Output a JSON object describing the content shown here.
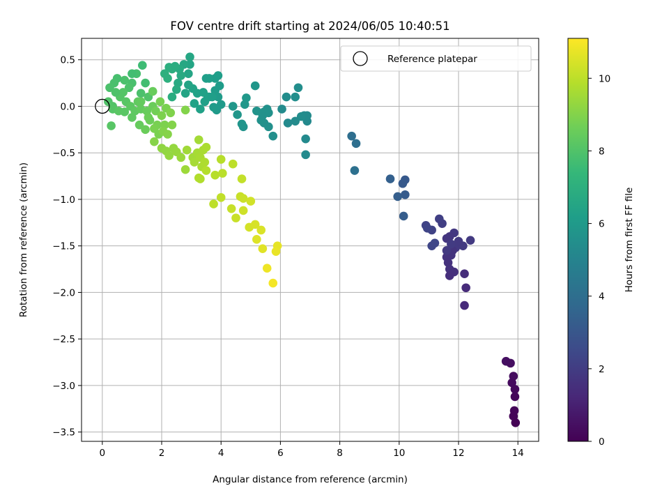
{
  "chart_data": {
    "type": "scatter",
    "title": "FOV centre drift starting at 2024/06/05 10:40:51",
    "xlabel": "Angular distance from reference (arcmin)",
    "ylabel": "Rotation from reference (arcmin)",
    "xlim": [
      -0.7,
      14.7
    ],
    "ylim": [
      -3.6,
      0.73
    ],
    "xticks": [
      0,
      2,
      4,
      6,
      8,
      10,
      12,
      14
    ],
    "xtick_labels": [
      "0",
      "2",
      "4",
      "6",
      "8",
      "10",
      "12",
      "14"
    ],
    "yticks": [
      0.5,
      0.0,
      -0.5,
      -1.0,
      -1.5,
      -2.0,
      -2.5,
      -3.0,
      -3.5
    ],
    "ytick_labels": [
      "0.5",
      "0.0",
      "−0.5",
      "−1.0",
      "−1.5",
      "−2.0",
      "−2.5",
      "−3.0",
      "−3.5"
    ],
    "grid": true,
    "legend": {
      "position": "top-right",
      "label": "Reference platepar"
    },
    "reference_point": {
      "x": 0,
      "y": 0
    },
    "colorbar": {
      "label": "Hours from first FF file",
      "range": [
        0,
        11.1
      ],
      "ticks": [
        0,
        2,
        4,
        6,
        8,
        10
      ],
      "tick_labels": [
        "0",
        "2",
        "4",
        "6",
        "8",
        "10"
      ],
      "colormap": "viridis",
      "colors": [
        "#440154",
        "#482878",
        "#3e4989",
        "#31688e",
        "#26828e",
        "#1f9e89",
        "#35b779",
        "#6ece58",
        "#b5de2b",
        "#fde725"
      ]
    },
    "points": [
      {
        "x": 13.6,
        "y": -2.74,
        "c": 0.45
      },
      {
        "x": 13.75,
        "y": -2.76,
        "c": 0.4
      },
      {
        "x": 13.85,
        "y": -2.9,
        "c": 0.35
      },
      {
        "x": 13.8,
        "y": -2.97,
        "c": 0.3
      },
      {
        "x": 13.9,
        "y": -3.04,
        "c": 0.25
      },
      {
        "x": 13.9,
        "y": -3.12,
        "c": 0.2
      },
      {
        "x": 13.88,
        "y": -3.27,
        "c": 0.15
      },
      {
        "x": 13.85,
        "y": -3.33,
        "c": 0.1
      },
      {
        "x": 13.92,
        "y": -3.4,
        "c": 0.05
      },
      {
        "x": 12.4,
        "y": -1.44,
        "c": 1.9
      },
      {
        "x": 12.15,
        "y": -1.5,
        "c": 1.9
      },
      {
        "x": 11.9,
        "y": -1.52,
        "c": 1.85
      },
      {
        "x": 12.0,
        "y": -1.45,
        "c": 1.85
      },
      {
        "x": 11.85,
        "y": -1.36,
        "c": 1.8
      },
      {
        "x": 11.7,
        "y": -1.4,
        "c": 1.75
      },
      {
        "x": 11.6,
        "y": -1.42,
        "c": 1.75
      },
      {
        "x": 11.8,
        "y": -1.55,
        "c": 1.7
      },
      {
        "x": 11.75,
        "y": -1.6,
        "c": 1.7
      },
      {
        "x": 11.6,
        "y": -1.62,
        "c": 1.65
      },
      {
        "x": 11.65,
        "y": -1.68,
        "c": 1.6
      },
      {
        "x": 11.7,
        "y": -1.75,
        "c": 1.6
      },
      {
        "x": 11.85,
        "y": -1.78,
        "c": 1.55
      },
      {
        "x": 11.7,
        "y": -1.82,
        "c": 1.5
      },
      {
        "x": 12.2,
        "y": -1.8,
        "c": 1.45
      },
      {
        "x": 12.25,
        "y": -1.95,
        "c": 1.4
      },
      {
        "x": 12.2,
        "y": -2.14,
        "c": 1.35
      },
      {
        "x": 11.75,
        "y": -1.48,
        "c": 1.95
      },
      {
        "x": 11.6,
        "y": -1.55,
        "c": 1.9
      },
      {
        "x": 11.45,
        "y": -1.26,
        "c": 2.05
      },
      {
        "x": 11.35,
        "y": -1.21,
        "c": 2.1
      },
      {
        "x": 11.1,
        "y": -1.33,
        "c": 2.2
      },
      {
        "x": 10.9,
        "y": -1.28,
        "c": 2.25
      },
      {
        "x": 10.95,
        "y": -1.31,
        "c": 2.3
      },
      {
        "x": 11.1,
        "y": -1.5,
        "c": 2.35
      },
      {
        "x": 11.2,
        "y": -1.47,
        "c": 2.4
      },
      {
        "x": 10.2,
        "y": -0.79,
        "c": 3.1
      },
      {
        "x": 10.12,
        "y": -0.83,
        "c": 3.15
      },
      {
        "x": 10.2,
        "y": -0.95,
        "c": 3.2
      },
      {
        "x": 9.95,
        "y": -0.97,
        "c": 3.3
      },
      {
        "x": 10.15,
        "y": -1.18,
        "c": 3.25
      },
      {
        "x": 9.7,
        "y": -0.78,
        "c": 3.4
      },
      {
        "x": 8.4,
        "y": -0.32,
        "c": 4.0
      },
      {
        "x": 8.55,
        "y": -0.4,
        "c": 4.05
      },
      {
        "x": 8.5,
        "y": -0.69,
        "c": 4.1
      },
      {
        "x": 6.85,
        "y": -0.52,
        "c": 5.3
      },
      {
        "x": 6.85,
        "y": -0.35,
        "c": 5.3
      },
      {
        "x": 6.9,
        "y": -0.16,
        "c": 5.25
      },
      {
        "x": 6.8,
        "y": -0.1,
        "c": 5.3
      },
      {
        "x": 6.9,
        "y": -0.1,
        "c": 5.35
      },
      {
        "x": 6.7,
        "y": -0.11,
        "c": 5.4
      },
      {
        "x": 6.5,
        "y": -0.16,
        "c": 5.35
      },
      {
        "x": 6.25,
        "y": -0.18,
        "c": 5.3
      },
      {
        "x": 6.2,
        "y": 0.1,
        "c": 5.4
      },
      {
        "x": 6.6,
        "y": 0.2,
        "c": 5.45
      },
      {
        "x": 6.5,
        "y": 0.1,
        "c": 5.45
      },
      {
        "x": 6.05,
        "y": -0.03,
        "c": 5.35
      },
      {
        "x": 5.75,
        "y": -0.32,
        "c": 5.5
      },
      {
        "x": 5.6,
        "y": -0.22,
        "c": 5.55
      },
      {
        "x": 5.45,
        "y": -0.18,
        "c": 5.55
      },
      {
        "x": 5.35,
        "y": -0.15,
        "c": 5.6
      },
      {
        "x": 5.6,
        "y": -0.07,
        "c": 5.6
      },
      {
        "x": 5.55,
        "y": -0.03,
        "c": 5.6
      },
      {
        "x": 5.45,
        "y": -0.06,
        "c": 5.65
      },
      {
        "x": 5.4,
        "y": -0.1,
        "c": 5.6
      },
      {
        "x": 5.2,
        "y": -0.05,
        "c": 5.7
      },
      {
        "x": 5.15,
        "y": 0.22,
        "c": 5.8
      },
      {
        "x": 4.85,
        "y": 0.09,
        "c": 5.9
      },
      {
        "x": 4.8,
        "y": 0.02,
        "c": 5.85
      },
      {
        "x": 4.75,
        "y": -0.22,
        "c": 5.7
      },
      {
        "x": 4.7,
        "y": -0.19,
        "c": 5.75
      },
      {
        "x": 4.55,
        "y": -0.09,
        "c": 5.8
      },
      {
        "x": 4.4,
        "y": 0.0,
        "c": 5.85
      },
      {
        "x": 4.0,
        "y": 0.02,
        "c": 6.0
      },
      {
        "x": 3.85,
        "y": -0.04,
        "c": 6.0
      },
      {
        "x": 3.75,
        "y": -0.01,
        "c": 6.05
      },
      {
        "x": 3.9,
        "y": 0.1,
        "c": 6.05
      },
      {
        "x": 3.8,
        "y": 0.17,
        "c": 6.1
      },
      {
        "x": 3.95,
        "y": 0.22,
        "c": 6.1
      },
      {
        "x": 3.9,
        "y": 0.33,
        "c": 6.15
      },
      {
        "x": 3.8,
        "y": 0.3,
        "c": 6.15
      },
      {
        "x": 3.6,
        "y": 0.3,
        "c": 6.2
      },
      {
        "x": 3.5,
        "y": 0.3,
        "c": 6.2
      },
      {
        "x": 3.55,
        "y": 0.1,
        "c": 6.25
      },
      {
        "x": 3.45,
        "y": 0.05,
        "c": 6.25
      },
      {
        "x": 3.3,
        "y": -0.03,
        "c": 6.3
      },
      {
        "x": 3.1,
        "y": 0.03,
        "c": 6.35
      },
      {
        "x": 3.2,
        "y": 0.14,
        "c": 6.35
      },
      {
        "x": 3.05,
        "y": 0.19,
        "c": 6.4
      },
      {
        "x": 2.9,
        "y": 0.23,
        "c": 6.45
      },
      {
        "x": 2.8,
        "y": 0.14,
        "c": 6.45
      },
      {
        "x": 2.9,
        "y": 0.35,
        "c": 6.5
      },
      {
        "x": 2.95,
        "y": 0.45,
        "c": 6.5
      },
      {
        "x": 2.95,
        "y": 0.53,
        "c": 6.55
      },
      {
        "x": 3.4,
        "y": 0.15,
        "c": 6.3
      },
      {
        "x": 3.6,
        "y": 0.1,
        "c": 6.3
      },
      {
        "x": 3.7,
        "y": 0.1,
        "c": 6.2
      },
      {
        "x": 2.75,
        "y": 0.45,
        "c": 6.6
      },
      {
        "x": 2.65,
        "y": 0.33,
        "c": 6.7
      },
      {
        "x": 2.55,
        "y": 0.25,
        "c": 6.7
      },
      {
        "x": 2.5,
        "y": 0.18,
        "c": 6.8
      },
      {
        "x": 2.6,
        "y": 0.4,
        "c": 6.75
      },
      {
        "x": 2.35,
        "y": 0.4,
        "c": 6.9
      },
      {
        "x": 2.25,
        "y": 0.42,
        "c": 6.95
      },
      {
        "x": 2.1,
        "y": 0.35,
        "c": 7.0
      },
      {
        "x": 2.2,
        "y": 0.3,
        "c": 7.0
      },
      {
        "x": 2.35,
        "y": 0.1,
        "c": 6.85
      },
      {
        "x": 2.45,
        "y": 0.43,
        "c": 6.85
      },
      {
        "x": 2.8,
        "y": -0.04,
        "c": 9.0
      },
      {
        "x": 1.35,
        "y": 0.44,
        "c": 7.6
      },
      {
        "x": 1.45,
        "y": 0.25,
        "c": 7.7
      },
      {
        "x": 1.15,
        "y": 0.35,
        "c": 7.8
      },
      {
        "x": 1.0,
        "y": 0.25,
        "c": 7.85
      },
      {
        "x": 1.3,
        "y": 0.14,
        "c": 7.9
      },
      {
        "x": 1.55,
        "y": 0.1,
        "c": 8.0
      },
      {
        "x": 0.9,
        "y": 0.2,
        "c": 7.95
      },
      {
        "x": 0.75,
        "y": 0.28,
        "c": 7.9
      },
      {
        "x": 0.5,
        "y": 0.3,
        "c": 7.8
      },
      {
        "x": 0.4,
        "y": 0.25,
        "c": 7.85
      },
      {
        "x": 0.25,
        "y": 0.2,
        "c": 7.9
      },
      {
        "x": 0.2,
        "y": 0.05,
        "c": 8.0
      },
      {
        "x": 0.35,
        "y": 0.0,
        "c": 8.05
      },
      {
        "x": 0.35,
        "y": -0.03,
        "c": 8.1
      },
      {
        "x": 0.3,
        "y": -0.21,
        "c": 8.15
      },
      {
        "x": 0.6,
        "y": 0.1,
        "c": 8.1
      },
      {
        "x": 0.75,
        "y": -0.06,
        "c": 8.2
      },
      {
        "x": 0.8,
        "y": 0.05,
        "c": 8.15
      },
      {
        "x": 0.7,
        "y": 0.15,
        "c": 8.1
      },
      {
        "x": 0.95,
        "y": 0.0,
        "c": 8.25
      },
      {
        "x": 1.0,
        "y": -0.12,
        "c": 8.3
      },
      {
        "x": 1.1,
        "y": -0.05,
        "c": 8.3
      },
      {
        "x": 1.2,
        "y": 0.05,
        "c": 8.35
      },
      {
        "x": 1.3,
        "y": -0.03,
        "c": 8.4
      },
      {
        "x": 1.25,
        "y": -0.2,
        "c": 8.45
      },
      {
        "x": 1.5,
        "y": -0.05,
        "c": 8.5
      },
      {
        "x": 1.45,
        "y": -0.25,
        "c": 8.55
      },
      {
        "x": 1.6,
        "y": -0.15,
        "c": 8.6
      },
      {
        "x": 1.7,
        "y": 0.0,
        "c": 8.55
      },
      {
        "x": 1.7,
        "y": 0.16,
        "c": 8.5
      },
      {
        "x": 1.8,
        "y": -0.05,
        "c": 8.7
      },
      {
        "x": 1.85,
        "y": -0.2,
        "c": 8.8
      },
      {
        "x": 1.9,
        "y": -0.3,
        "c": 8.85
      },
      {
        "x": 1.75,
        "y": -0.24,
        "c": 8.85
      },
      {
        "x": 2.0,
        "y": -0.1,
        "c": 8.9
      },
      {
        "x": 2.1,
        "y": -0.2,
        "c": 8.9
      },
      {
        "x": 2.15,
        "y": -0.02,
        "c": 8.85
      },
      {
        "x": 2.05,
        "y": -0.27,
        "c": 9.0
      },
      {
        "x": 2.2,
        "y": -0.3,
        "c": 9.05
      },
      {
        "x": 2.35,
        "y": -0.2,
        "c": 9.0
      },
      {
        "x": 2.3,
        "y": -0.07,
        "c": 8.95
      },
      {
        "x": 1.95,
        "y": 0.05,
        "c": 8.8
      },
      {
        "x": 1.0,
        "y": 0.35,
        "c": 7.7
      },
      {
        "x": 0.45,
        "y": 0.15,
        "c": 7.95
      },
      {
        "x": 2.0,
        "y": -0.45,
        "c": 9.2
      },
      {
        "x": 2.15,
        "y": -0.48,
        "c": 9.25
      },
      {
        "x": 2.25,
        "y": -0.53,
        "c": 9.3
      },
      {
        "x": 2.4,
        "y": -0.45,
        "c": 9.3
      },
      {
        "x": 2.5,
        "y": -0.49,
        "c": 9.35
      },
      {
        "x": 2.65,
        "y": -0.55,
        "c": 9.4
      },
      {
        "x": 2.8,
        "y": -0.68,
        "c": 9.45
      },
      {
        "x": 2.85,
        "y": -0.47,
        "c": 9.5
      },
      {
        "x": 3.05,
        "y": -0.55,
        "c": 9.55
      },
      {
        "x": 3.1,
        "y": -0.6,
        "c": 9.6
      },
      {
        "x": 3.2,
        "y": -0.5,
        "c": 9.6
      },
      {
        "x": 3.25,
        "y": -0.36,
        "c": 9.55
      },
      {
        "x": 3.3,
        "y": -0.55,
        "c": 9.65
      },
      {
        "x": 3.4,
        "y": -0.47,
        "c": 9.65
      },
      {
        "x": 3.5,
        "y": -0.44,
        "c": 9.7
      },
      {
        "x": 3.35,
        "y": -0.65,
        "c": 9.7
      },
      {
        "x": 3.45,
        "y": -0.6,
        "c": 9.75
      },
      {
        "x": 3.25,
        "y": -0.77,
        "c": 9.8
      },
      {
        "x": 3.3,
        "y": -0.78,
        "c": 9.8
      },
      {
        "x": 3.5,
        "y": -0.69,
        "c": 9.85
      },
      {
        "x": 3.8,
        "y": -0.74,
        "c": 9.9
      },
      {
        "x": 4.0,
        "y": -0.57,
        "c": 9.9
      },
      {
        "x": 4.05,
        "y": -0.72,
        "c": 9.95
      },
      {
        "x": 4.4,
        "y": -0.62,
        "c": 10.0
      },
      {
        "x": 4.7,
        "y": -0.78,
        "c": 10.1
      },
      {
        "x": 4.0,
        "y": -0.98,
        "c": 10.05
      },
      {
        "x": 3.75,
        "y": -1.05,
        "c": 10.0
      },
      {
        "x": 4.35,
        "y": -1.1,
        "c": 10.15
      },
      {
        "x": 4.5,
        "y": -1.2,
        "c": 10.2
      },
      {
        "x": 4.65,
        "y": -0.97,
        "c": 10.2
      },
      {
        "x": 4.75,
        "y": -0.99,
        "c": 10.25
      },
      {
        "x": 4.75,
        "y": -1.12,
        "c": 10.3
      },
      {
        "x": 5.0,
        "y": -1.02,
        "c": 10.35
      },
      {
        "x": 4.95,
        "y": -1.3,
        "c": 10.4
      },
      {
        "x": 5.15,
        "y": -1.27,
        "c": 10.45
      },
      {
        "x": 5.35,
        "y": -1.33,
        "c": 10.5
      },
      {
        "x": 5.2,
        "y": -1.43,
        "c": 10.55
      },
      {
        "x": 5.4,
        "y": -1.53,
        "c": 10.6
      },
      {
        "x": 5.9,
        "y": -1.5,
        "c": 10.7
      },
      {
        "x": 5.85,
        "y": -1.56,
        "c": 10.75
      },
      {
        "x": 5.55,
        "y": -1.74,
        "c": 10.85
      },
      {
        "x": 5.75,
        "y": -1.9,
        "c": 10.95
      },
      {
        "x": 1.3,
        "y": 0.05,
        "c": 8.4
      },
      {
        "x": 1.55,
        "y": -0.12,
        "c": 8.6
      },
      {
        "x": 0.55,
        "y": -0.05,
        "c": 8.2
      },
      {
        "x": 1.75,
        "y": -0.38,
        "c": 9.05
      }
    ]
  }
}
